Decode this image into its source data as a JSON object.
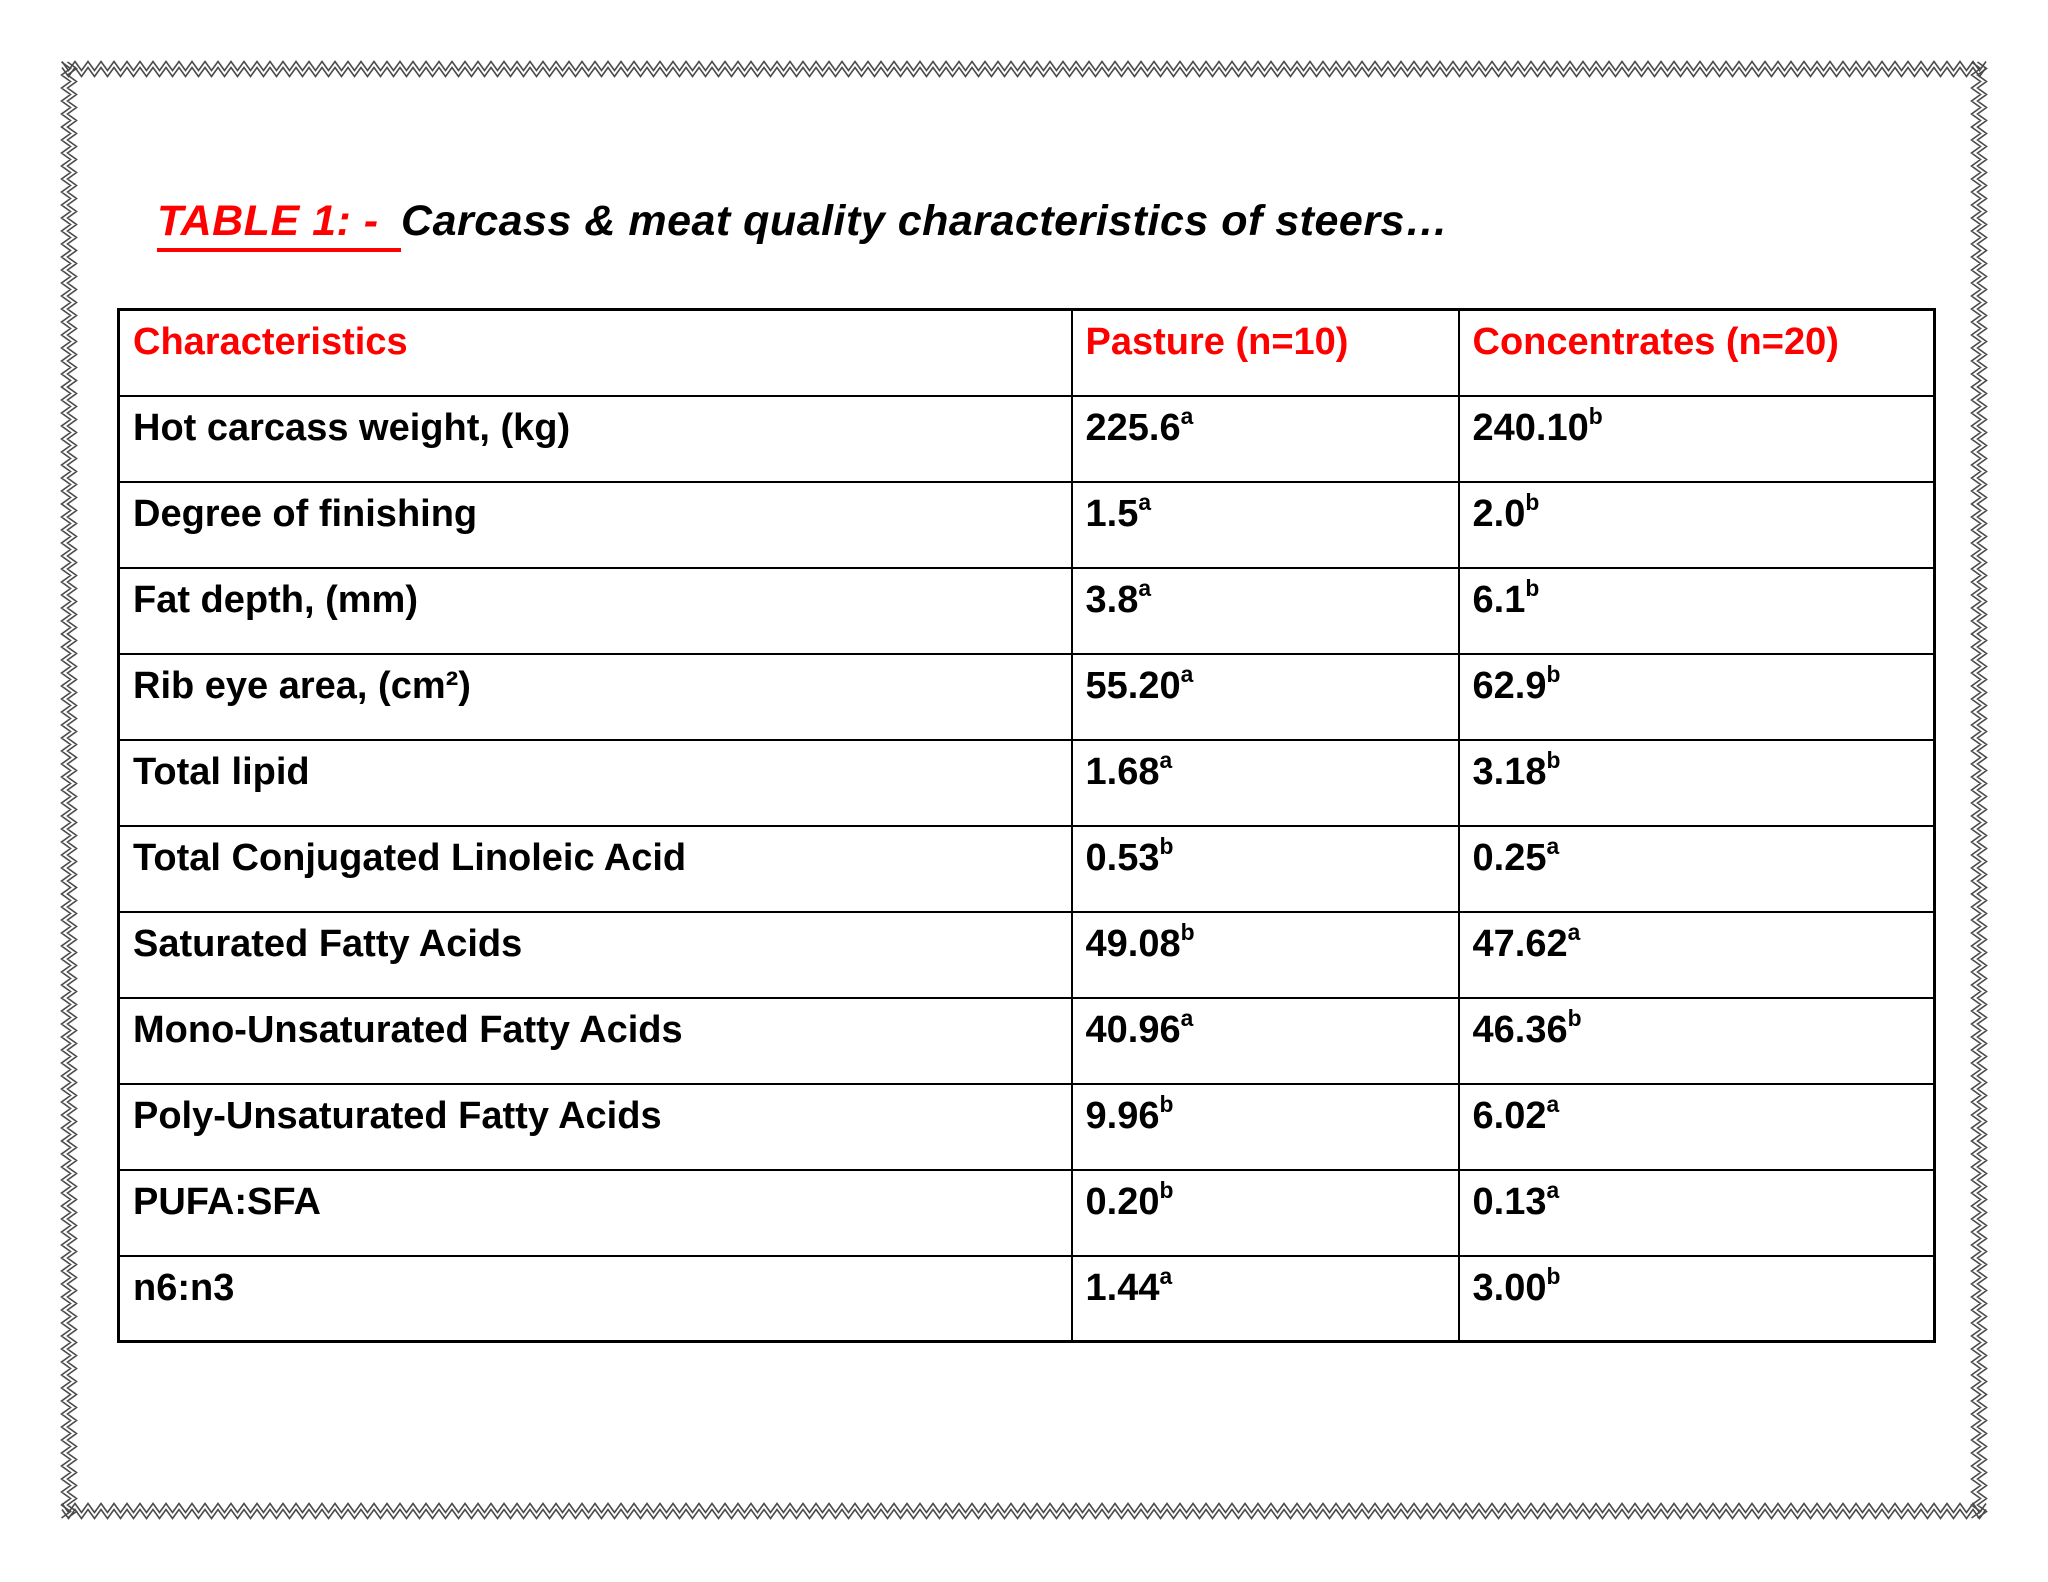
{
  "page": {
    "title": {
      "label_red": "TABLE 1: - ",
      "label_black": "Carcass & meat quality characteristics of steers…"
    },
    "accent_color": "#ff0000",
    "border_color": "#4a4a4a"
  },
  "table": {
    "headers": [
      "Characteristics",
      "Pasture (n=10)",
      "Concentrates (n=20)"
    ],
    "rows": [
      {
        "label": "Hot carcass weight, (kg)",
        "cells": [
          {
            "v": "225.6",
            "s": "a"
          },
          {
            "v": "240.10",
            "s": "b"
          }
        ]
      },
      {
        "label": "Degree of finishing",
        "cells": [
          {
            "v": "1.5",
            "s": "a"
          },
          {
            "v": "2.0",
            "s": "b"
          }
        ]
      },
      {
        "label": "Fat depth, (mm)",
        "cells": [
          {
            "v": "3.8",
            "s": "a"
          },
          {
            "v": "6.1",
            "s": "b"
          }
        ]
      },
      {
        "label": "Rib eye area, (cm²)",
        "cells": [
          {
            "v": "55.20",
            "s": "a"
          },
          {
            "v": "62.9",
            "s": "b"
          }
        ]
      },
      {
        "label": "Total lipid",
        "cells": [
          {
            "v": "1.68",
            "s": "a"
          },
          {
            "v": "3.18",
            "s": "b"
          }
        ]
      },
      {
        "label": "Total Conjugated Linoleic Acid",
        "cells": [
          {
            "v": "0.53",
            "s": "b"
          },
          {
            "v": "0.25",
            "s": "a"
          }
        ]
      },
      {
        "label": "Saturated Fatty Acids",
        "cells": [
          {
            "v": "49.08",
            "s": "b"
          },
          {
            "v": "47.62",
            "s": "a"
          }
        ]
      },
      {
        "label": "Mono-Unsaturated Fatty Acids",
        "cells": [
          {
            "v": "40.96",
            "s": "a"
          },
          {
            "v": "46.36",
            "s": "b"
          }
        ]
      },
      {
        "label": "Poly-Unsaturated Fatty Acids",
        "cells": [
          {
            "v": "9.96",
            "s": "b"
          },
          {
            "v": "6.02",
            "s": "a"
          }
        ]
      },
      {
        "label": "PUFA:SFA",
        "cells": [
          {
            "v": "0.20",
            "s": "b"
          },
          {
            "v": "0.13",
            "s": "a"
          }
        ]
      },
      {
        "label": "n6:n3",
        "cells": [
          {
            "v": "1.44",
            "s": "a"
          },
          {
            "v": "3.00",
            "s": "b"
          }
        ]
      }
    ]
  }
}
